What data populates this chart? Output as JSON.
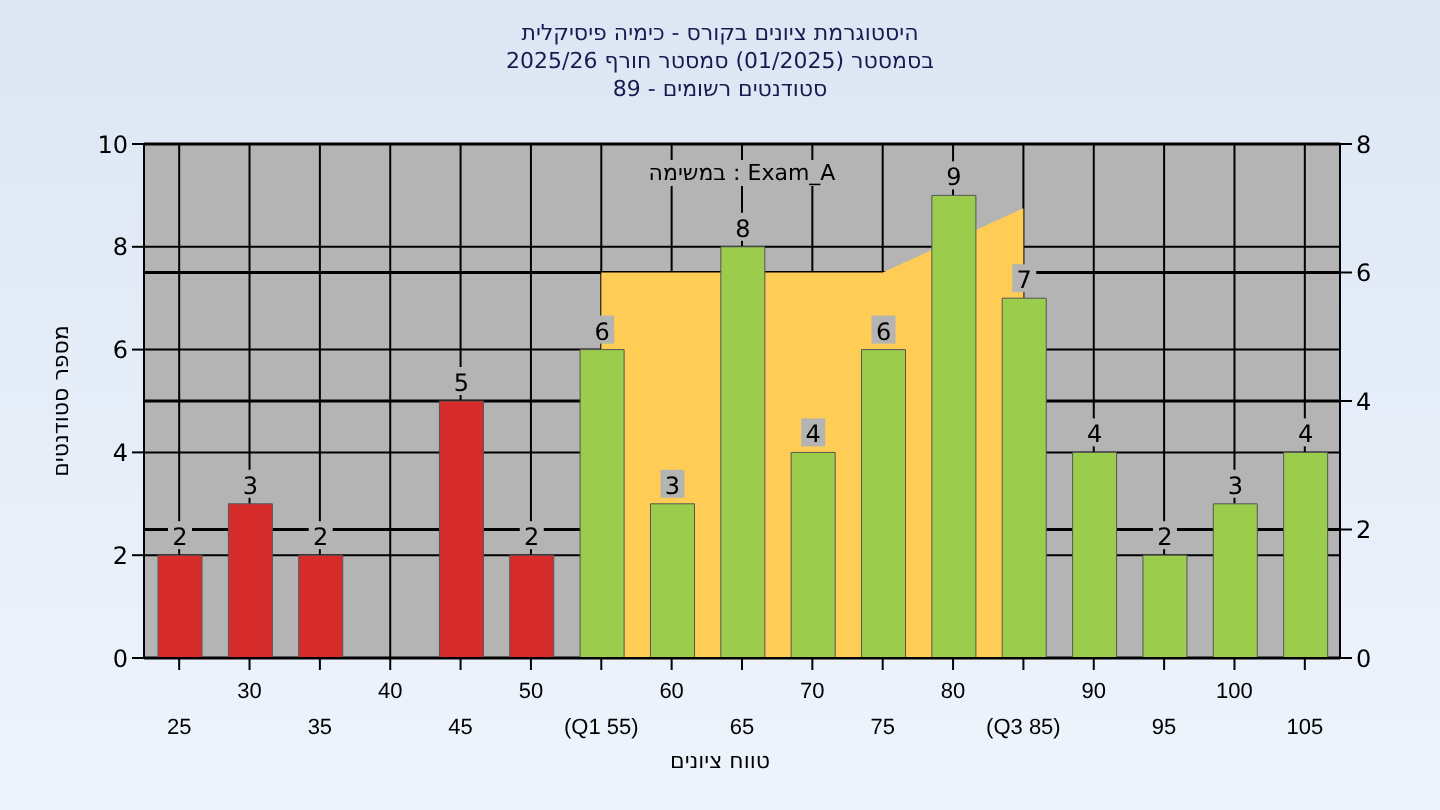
{
  "chart_data": {
    "type": "bar",
    "title": "היסטוגרמת ציונים בקורס - כימיה פיסיקלית",
    "subtitle": "בסמסטר  (01/2025)  סמסטר חורף 2025/26\nסטודנטים רשומים - 89",
    "xlabel": "טווח ציונים",
    "ylabel": "מספר סטודנטים",
    "annotations": [
      "במשימה : Exam_A"
    ],
    "categories": [
      "25",
      "30",
      "35",
      "40",
      "45",
      "50",
      "(Q1 55)",
      "60",
      "65",
      "70",
      "75",
      "80",
      "(Q3 85)",
      "90",
      "95",
      "100",
      "105"
    ],
    "series": [
      {
        "type": "area",
        "axis": "y2",
        "color": "#ffcc55",
        "values": [
          null,
          null,
          null,
          null,
          null,
          null,
          6,
          6,
          null,
          6,
          6,
          null,
          7,
          null,
          null,
          null,
          null
        ]
      },
      {
        "colors": [
          "#d62c2c",
          "#d62c2c",
          "#d62c2c",
          null,
          "#d62c2c",
          "#d62c2c",
          "#9ccc4c",
          "#9ccc4c",
          "#9ccc4c",
          "#9ccc4c",
          "#9ccc4c",
          "#9ccc4c",
          "#9ccc4c",
          "#9ccc4c",
          "#9ccc4c",
          "#9ccc4c",
          "#9ccc4c"
        ],
        "values": [
          2,
          3,
          2,
          null,
          5,
          2,
          6,
          3,
          8,
          4,
          6,
          9,
          7,
          4,
          2,
          3,
          4
        ],
        "value_labels": [
          "2",
          "3",
          "2",
          null,
          "5",
          "2",
          "6",
          "3",
          "8",
          "4",
          "6",
          "9",
          "7",
          "4",
          "2",
          "3",
          "4"
        ]
      }
    ],
    "grid": true,
    "ylim": [
      0,
      10
    ],
    "yticks": [
      0,
      2,
      4,
      6,
      8,
      10
    ],
    "y2lim": [
      0,
      8
    ],
    "y2ticks": [
      0,
      2,
      4,
      6,
      8
    ]
  }
}
